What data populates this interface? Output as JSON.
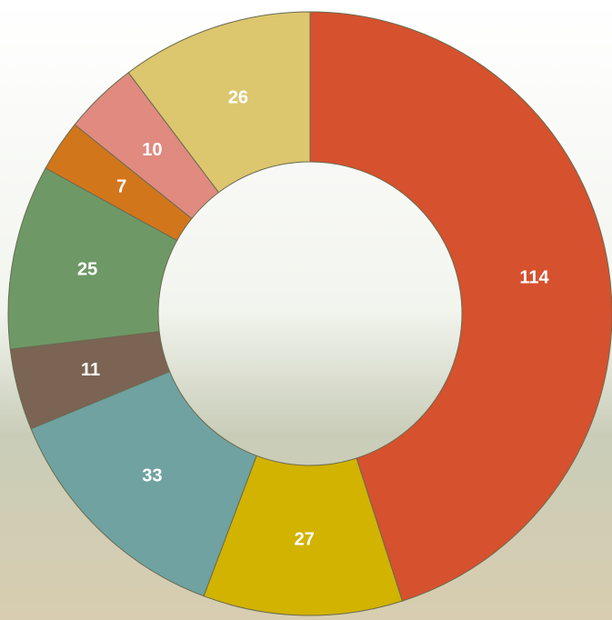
{
  "chart_data": {
    "type": "donut",
    "values": [
      114,
      27,
      33,
      11,
      25,
      7,
      10,
      26
    ],
    "colors": [
      "#d6512e",
      "#d2b300",
      "#6fa2a0",
      "#7b6454",
      "#6e9966",
      "#d2761c",
      "#e08a80",
      "#dcc66e"
    ]
  }
}
